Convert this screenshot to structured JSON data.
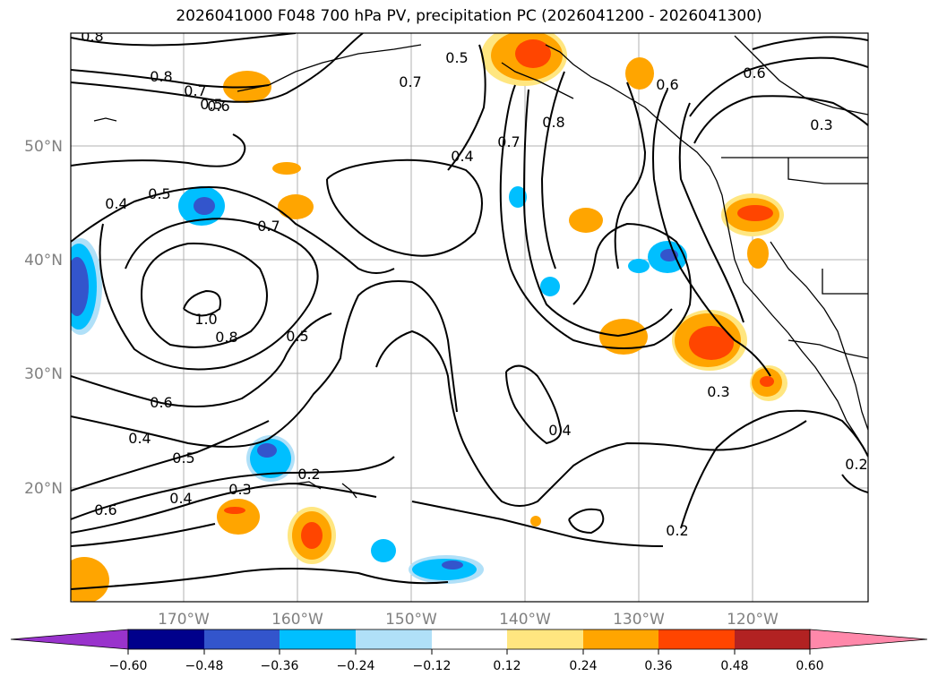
{
  "title": "2026041000 F048 700 hPa PV, precipitation PC (2026041200 - 2026041300)",
  "axes": {
    "lat_labels": [
      "50°N",
      "40°N",
      "30°N",
      "20°N"
    ],
    "lon_labels": [
      "170°W",
      "160°W",
      "150°W",
      "140°W",
      "130°W",
      "120°W"
    ]
  },
  "contour_labels": [
    "0.8",
    "0.8",
    "0.7",
    "0.6",
    "0.5",
    "0.7",
    "0.5",
    "0.6",
    "0.8",
    "0.6",
    "0.3",
    "0.7",
    "0.4",
    "0.4",
    "0.5",
    "0.7",
    "0.8",
    "1.0",
    "0.5",
    "0.6",
    "0.4",
    "0.5",
    "0.4",
    "0.3",
    "0.2",
    "0.6",
    "0.4",
    "0.3",
    "0.2",
    "0.2"
  ],
  "colorbar": {
    "ticks": [
      "−0.60",
      "−0.48",
      "−0.36",
      "−0.24",
      "−0.12",
      "0.12",
      "0.24",
      "0.36",
      "0.48",
      "0.60"
    ],
    "colors": [
      "#9933cc",
      "#00008b",
      "#3355cc",
      "#00bfff",
      "#b0e0f8",
      "#ffffff",
      "#ffe680",
      "#ffa500",
      "#ff4500",
      "#b22222",
      "#ff88aa"
    ]
  },
  "colors": {
    "positive_strong": "#ff4500",
    "positive_mid": "#ffa500",
    "positive_weak": "#ffe680",
    "negative_strong": "#3355cc",
    "negative_mid": "#00bfff",
    "negative_weak": "#b0e0f8"
  }
}
